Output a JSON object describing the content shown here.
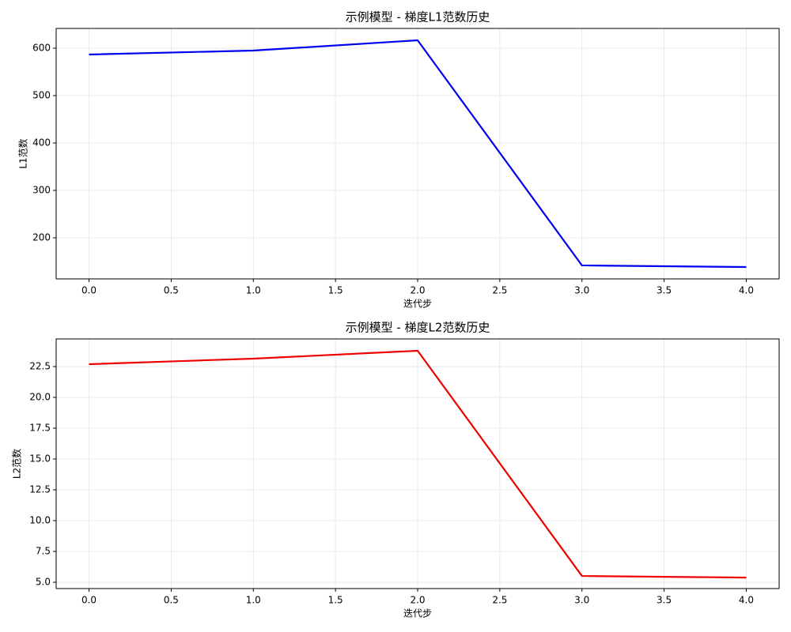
{
  "chart_data": [
    {
      "type": "line",
      "title": "示例模型 - 梯度L1范数历史",
      "x_label": "迭代步",
      "y_label": "L1范数",
      "x": [
        0,
        1,
        2,
        3,
        4
      ],
      "values": [
        586.7,
        595,
        616.7,
        141.7,
        138.3
      ],
      "color": "#0000ee",
      "xlim": [
        -0.2,
        4.2
      ],
      "xticks": [
        {
          "value": 0,
          "label": "0.0"
        },
        0.5,
        {
          "value": 1,
          "label": "1.0"
        },
        1.5,
        {
          "value": 2,
          "label": "2.0"
        },
        2.5,
        {
          "value": 3,
          "label": "3.0"
        },
        3.5,
        {
          "value": 4,
          "label": "4.0"
        }
      ],
      "ylim": [
        113.3,
        641.7
      ],
      "yticks": [
        200,
        300,
        400,
        500,
        600
      ],
      "grid": true
    },
    {
      "type": "line",
      "title": "示例模型 - 梯度L2范数历史",
      "x_label": "迭代步",
      "y_label": "L2范数",
      "x": [
        0,
        1,
        2,
        3,
        4
      ],
      "values": [
        22.69,
        23.14,
        23.78,
        5.51,
        5.38
      ],
      "color": "#ee0000",
      "xlim": [
        -0.2,
        4.2
      ],
      "xticks": [
        {
          "value": 0,
          "label": "0.0"
        },
        0.5,
        {
          "value": 1,
          "label": "1.0"
        },
        1.5,
        {
          "value": 2,
          "label": "2.0"
        },
        2.5,
        {
          "value": 3,
          "label": "3.0"
        },
        3.5,
        {
          "value": 4,
          "label": "4.0"
        }
      ],
      "ylim": [
        4.49,
        24.74
      ],
      "yticks": [
        {
          "value": 5,
          "label": "5.0"
        },
        7.5,
        {
          "value": 10,
          "label": "10.0"
        },
        12.5,
        {
          "value": 15,
          "label": "15.0"
        },
        17.5,
        {
          "value": 20,
          "label": "20.0"
        },
        22.5
      ],
      "grid": true
    }
  ]
}
